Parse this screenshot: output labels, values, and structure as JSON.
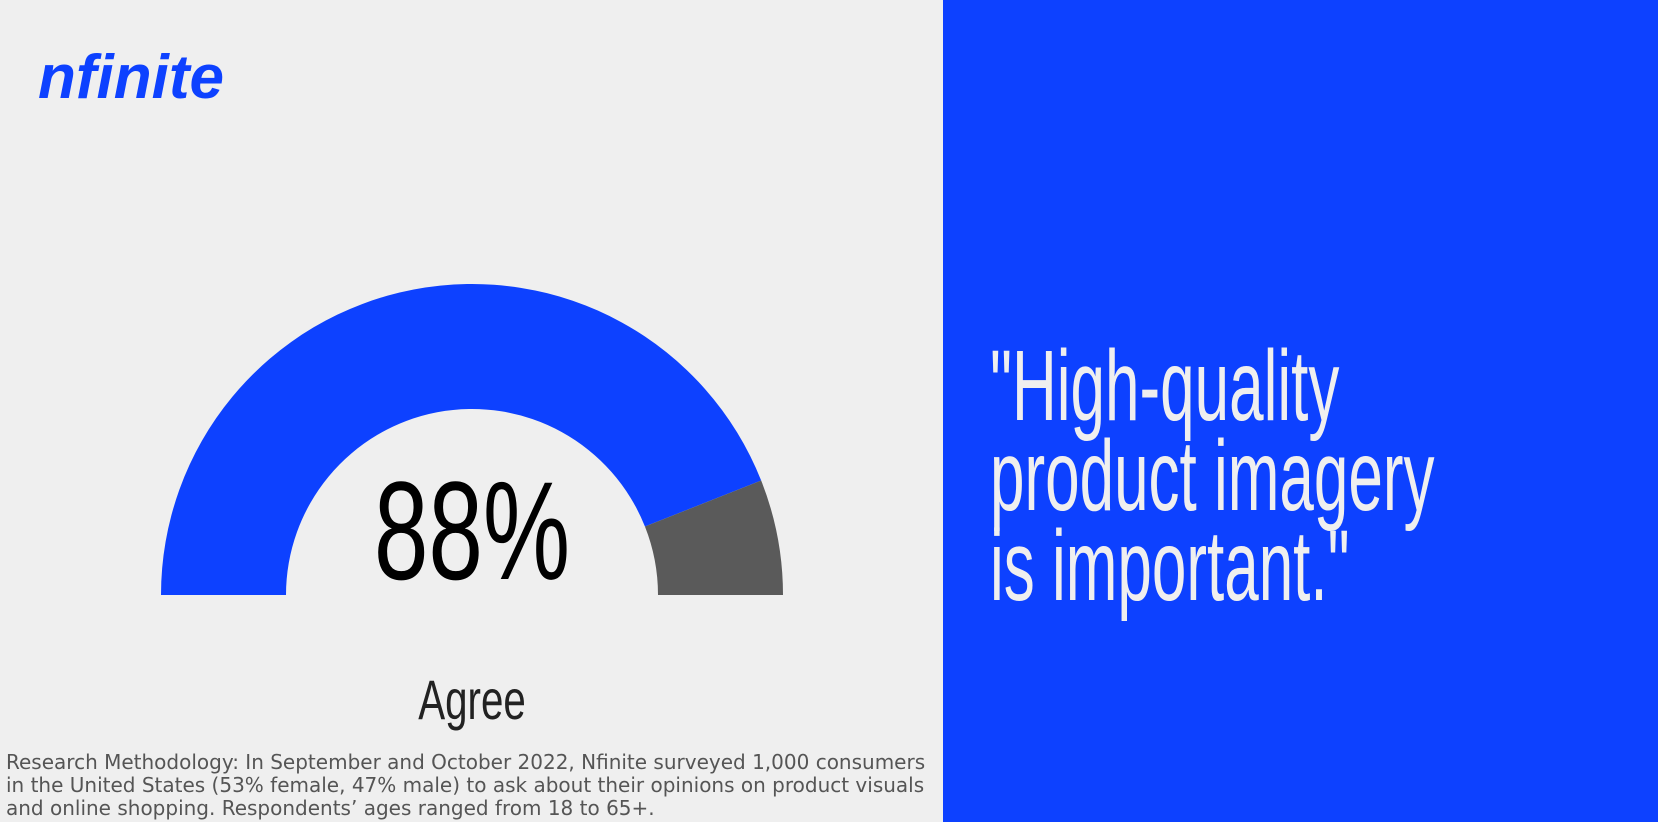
{
  "logo": "nfinite",
  "chart_data": {
    "type": "gauge",
    "categories": [
      "Agree",
      null
    ],
    "values": [
      88,
      12
    ],
    "value_labels": [
      "88%",
      null
    ],
    "colors": [
      "#0d41ff",
      "#5a5a5a"
    ]
  },
  "quote": [
    "\"High-quality",
    "product imagery",
    "is important.\""
  ],
  "footnote": "Research Methodology: In September and October 2022, Nfinite surveyed 1,000 consumers in the United States (53% female, 47% male) to ask about their opinions on product visuals and online shopping. Respondents’ ages ranged from 18 to 65+."
}
